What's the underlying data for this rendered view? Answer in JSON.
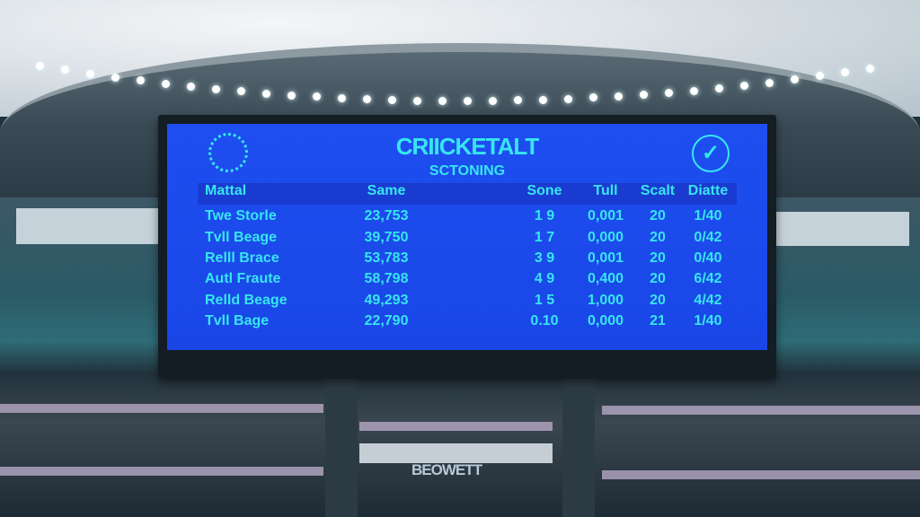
{
  "scoreboard": {
    "title": "CRIICKETALT",
    "subtitle": "SCTONING",
    "headers": [
      "Mattal",
      "Same",
      "Sone",
      "Tull",
      "Scalt",
      "Diatte"
    ],
    "rows": [
      [
        "Twe Storle",
        "23,753",
        "1   9",
        "0,001",
        "20",
        "1/40"
      ],
      [
        "Tvll Beage",
        "39,750",
        "1   7",
        "0,000",
        "20",
        "0/42"
      ],
      [
        "Relll Brace",
        "53,783",
        "3   9",
        "0,001",
        "20",
        "0/40"
      ],
      [
        "Autl Fraute",
        "58,798",
        "4   9",
        "0,400",
        "20",
        "6/42"
      ],
      [
        "Relld Beage",
        "49,293",
        "1   5",
        "1,000",
        "20",
        "4/42"
      ],
      [
        "Tvll Bage",
        "22,790",
        "0.10",
        "0,000",
        "21",
        "1/40"
      ]
    ],
    "screen_color": "#1e4ef0",
    "text_color": "#36e6f0",
    "left_icon": "dotted-circle-icon",
    "right_icon": "check-badge-icon"
  },
  "stadium_sign": "BEOWETT"
}
